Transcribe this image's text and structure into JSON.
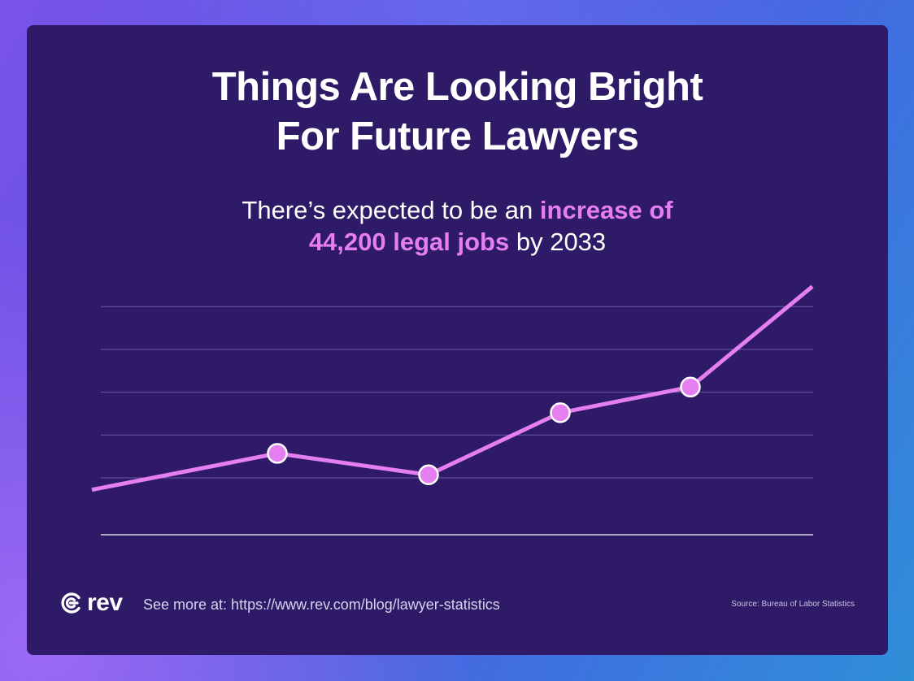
{
  "title": {
    "line1": "Things Are Looking Bright",
    "line2": "For Future Lawyers"
  },
  "subtitle": {
    "pre": "There’s expected to be an ",
    "highlight1": "increase of",
    "highlight2": "44,200 legal jobs",
    "post": " by 2033"
  },
  "footer": {
    "logo": "rev",
    "see_more": "See more at: https://www.rev.com/blog/lawyer-statistics",
    "source": "Source: Bureau of Labor Statistics"
  },
  "colors": {
    "background": "#2e1a66",
    "line": "#e57ef0",
    "marker_fill": "#e57ef0",
    "marker_stroke": "#ffffff",
    "grid": "#6a5aa6",
    "baseline": "#ffffff"
  },
  "chart_data": {
    "type": "line",
    "x": [
      0,
      1,
      2,
      3,
      4,
      5
    ],
    "series": [
      {
        "values": [
          1.05,
          1.9,
          1.4,
          2.85,
          3.45,
          5.8
        ],
        "markers": [
          false,
          true,
          true,
          true,
          true,
          false
        ]
      }
    ],
    "ylim": [
      0,
      6
    ],
    "grid_values": [
      1.33,
      2.33,
      3.33,
      4.33,
      5.33
    ],
    "grid": true,
    "legend": "none",
    "title": "",
    "xlabel": "",
    "ylabel": ""
  }
}
